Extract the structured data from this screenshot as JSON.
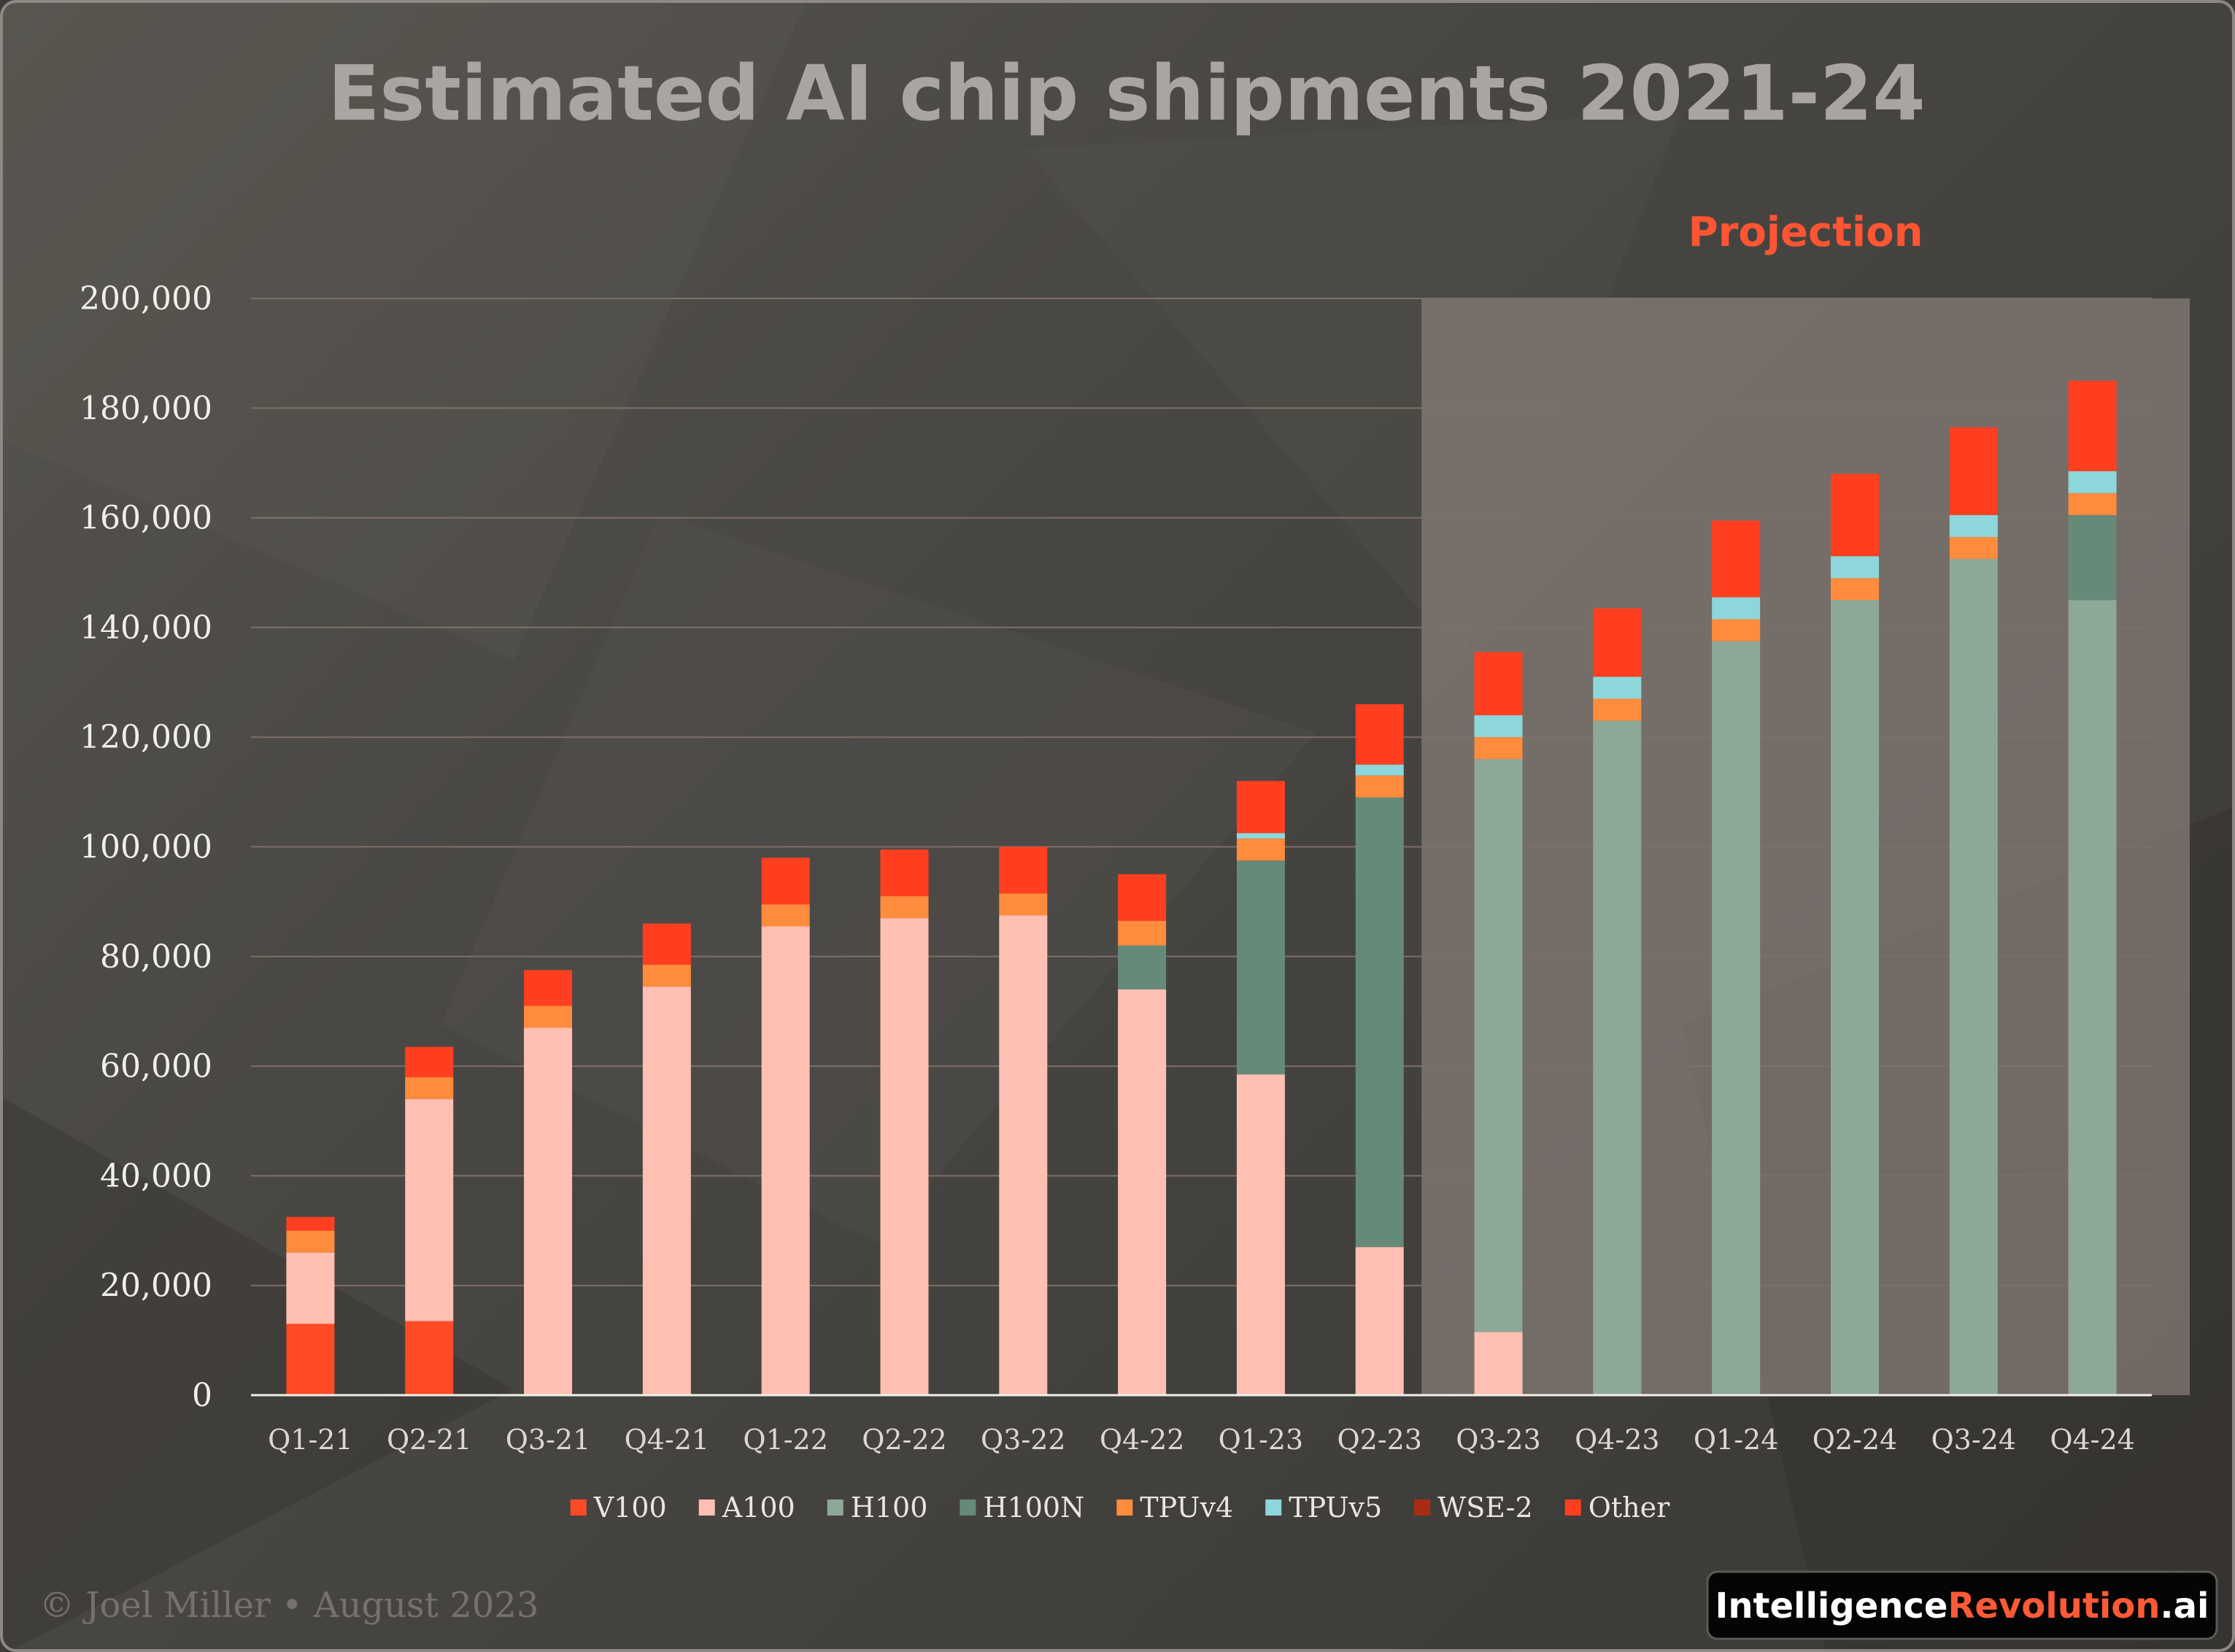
{
  "chart_data": {
    "type": "bar",
    "stacked": true,
    "title": "Estimated AI chip shipments 2021-24",
    "annotation": "Projection",
    "projection_start_category": "Q3-23",
    "xlabel": "",
    "ylabel": "",
    "ylim": [
      0,
      200000
    ],
    "yticks": [
      0,
      20000,
      40000,
      60000,
      80000,
      100000,
      120000,
      140000,
      160000,
      180000,
      200000
    ],
    "ytick_labels": [
      "0",
      "20,000",
      "40,000",
      "60,000",
      "80,000",
      "100,000",
      "120,000",
      "140,000",
      "160,000",
      "180,000",
      "200,000"
    ],
    "grid": true,
    "legend_position": "bottom",
    "categories": [
      "Q1-21",
      "Q2-21",
      "Q3-21",
      "Q4-21",
      "Q1-22",
      "Q2-22",
      "Q3-22",
      "Q4-22",
      "Q1-23",
      "Q2-23",
      "Q3-23",
      "Q4-23",
      "Q1-24",
      "Q2-24",
      "Q3-24",
      "Q4-24"
    ],
    "series": [
      {
        "name": "V100",
        "color": "#ff4a26",
        "values": [
          13000,
          13500,
          0,
          0,
          0,
          0,
          0,
          0,
          0,
          0,
          0,
          0,
          0,
          0,
          0,
          0
        ]
      },
      {
        "name": "A100",
        "color": "#ffbfb2",
        "values": [
          13000,
          40500,
          67000,
          74500,
          85500,
          87000,
          87500,
          74000,
          58500,
          27000,
          11500,
          0,
          0,
          0,
          0,
          0
        ]
      },
      {
        "name": "H100",
        "color": "#8ea898",
        "values": [
          0,
          0,
          0,
          0,
          0,
          0,
          0,
          0,
          0,
          0,
          104500,
          123000,
          137500,
          145000,
          152500,
          145000
        ]
      },
      {
        "name": "H100N",
        "color": "#668a78",
        "values": [
          0,
          0,
          0,
          0,
          0,
          0,
          0,
          8000,
          39000,
          82000,
          0,
          0,
          0,
          0,
          0,
          15500
        ]
      },
      {
        "name": "TPUv4",
        "color": "#ff8b3d",
        "values": [
          4000,
          4000,
          4000,
          4000,
          4000,
          4000,
          4000,
          4500,
          4000,
          4000,
          4000,
          4000,
          4000,
          4000,
          4000,
          4000
        ]
      },
      {
        "name": "TPUv5",
        "color": "#8dd7db",
        "values": [
          0,
          0,
          0,
          0,
          0,
          0,
          0,
          0,
          1000,
          2000,
          4000,
          4000,
          4000,
          4000,
          4000,
          4000
        ]
      },
      {
        "name": "WSE-2",
        "color": "#a82c12",
        "values": [
          0,
          0,
          0,
          0,
          0,
          0,
          0,
          0,
          0,
          0,
          0,
          0,
          0,
          0,
          0,
          0
        ]
      },
      {
        "name": "Other",
        "color": "#ff3f1f",
        "values": [
          2500,
          5500,
          6500,
          7500,
          8500,
          8500,
          8500,
          8500,
          9500,
          11000,
          11500,
          12500,
          14000,
          15000,
          16000,
          16500
        ]
      }
    ]
  },
  "footer": {
    "credit": "© Joel Miller • August 2023",
    "brand_part1": "Intelligence",
    "brand_part2": "Revolution",
    "brand_part3": ".ai"
  },
  "colors": {
    "grid": "#7e6f68",
    "axis": "#f2f0ea",
    "projection_shade": "#8a807b",
    "accent": "#ff5533"
  }
}
